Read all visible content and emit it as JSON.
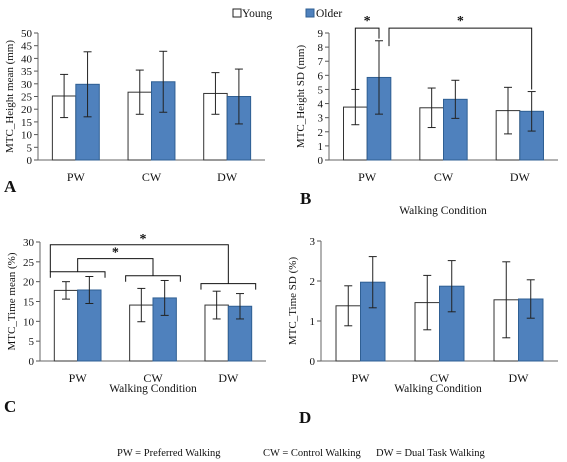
{
  "legend": {
    "series": [
      {
        "name": "Young",
        "color": "#ffffff"
      },
      {
        "name": "Older",
        "color": "#4f81bd"
      }
    ],
    "placement": "top"
  },
  "footer": {
    "pw": "PW = Preferred Walking",
    "cw": "CW = Control Walking",
    "dw": "DW = Dual Task Walking"
  },
  "chart_data": [
    {
      "panel": "A",
      "type": "bar",
      "categories": [
        "PW",
        "CW",
        "DW"
      ],
      "ylabel": "MTC_Height mean (mm)",
      "xlabel": "",
      "ylim": [
        0,
        50
      ],
      "ytick_step": 5,
      "series": [
        {
          "name": "Young",
          "values": [
            25.2,
            26.7,
            26.2
          ],
          "errors": [
            8.5,
            8.7,
            8.2
          ]
        },
        {
          "name": "Older",
          "values": [
            29.8,
            30.8,
            25.0
          ],
          "errors": [
            12.8,
            12.0,
            10.8
          ]
        }
      ],
      "significance": []
    },
    {
      "panel": "B",
      "type": "bar",
      "categories": [
        "PW",
        "CW",
        "DW"
      ],
      "ylabel": "MTC_Height SD (mm)",
      "xlabel": "Walking Condition",
      "ylim": [
        0,
        9
      ],
      "ytick_step": 1,
      "series": [
        {
          "name": "Young",
          "values": [
            3.75,
            3.7,
            3.5
          ],
          "errors": [
            1.25,
            1.4,
            1.65
          ]
        },
        {
          "name": "Older",
          "values": [
            5.85,
            4.3,
            3.45
          ],
          "errors": [
            2.6,
            1.35,
            1.4
          ]
        }
      ],
      "significance": [
        "*",
        "*"
      ]
    },
    {
      "panel": "C",
      "type": "bar",
      "categories": [
        "PW",
        "CW",
        "DW"
      ],
      "ylabel": "MTC_Time mean (%)",
      "xlabel": "Walking Condition",
      "ylim": [
        0,
        30
      ],
      "ytick_step": 5,
      "series": [
        {
          "name": "Young",
          "values": [
            17.8,
            14.1,
            14.1
          ],
          "errors": [
            2.2,
            4.2,
            3.5
          ]
        },
        {
          "name": "Older",
          "values": [
            17.9,
            15.9,
            13.8
          ],
          "errors": [
            3.4,
            4.4,
            3.2
          ]
        }
      ],
      "significance": [
        "*",
        "*"
      ]
    },
    {
      "panel": "D",
      "type": "bar",
      "categories": [
        "PW",
        "CW",
        "DW"
      ],
      "ylabel": "MTC_Time SD (%)",
      "xlabel": "Walking Condition",
      "ylim": [
        0,
        3
      ],
      "ytick_step": 1,
      "series": [
        {
          "name": "Young",
          "values": [
            1.38,
            1.46,
            1.53
          ],
          "errors": [
            0.5,
            0.68,
            0.95
          ]
        },
        {
          "name": "Older",
          "values": [
            1.97,
            1.87,
            1.55
          ],
          "errors": [
            0.64,
            0.64,
            0.48
          ]
        }
      ],
      "significance": []
    }
  ]
}
